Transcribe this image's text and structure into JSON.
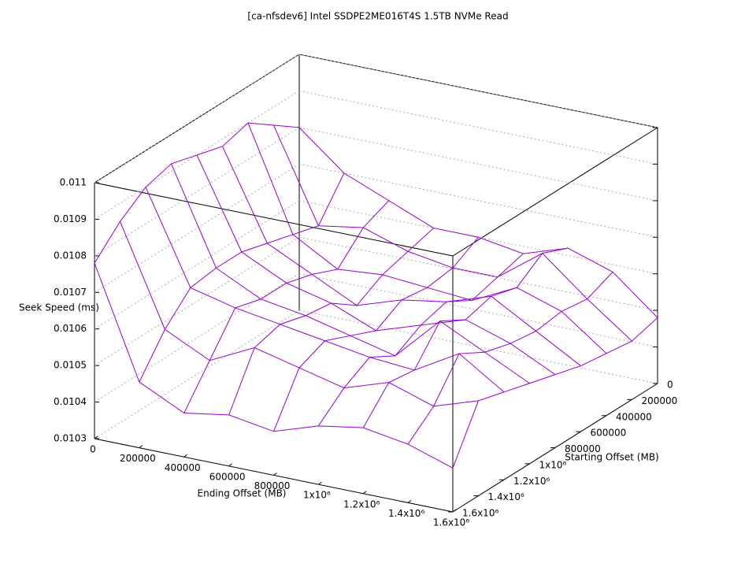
{
  "chart_data": {
    "type": "surface",
    "title": "[ca-nfsdev6] Intel SSDPE2ME016T4S 1.5TB NVMe Read",
    "x_label": "Ending Offset (MB)",
    "y_label": "Starting Offset (MB)",
    "z_label": "Seek Speed (ms)",
    "color": "#9400d3",
    "x": [
      0,
      200000,
      400000,
      600000,
      800000,
      1000000,
      1200000,
      1400000,
      1600000
    ],
    "y": [
      0,
      200000,
      400000,
      600000,
      800000,
      1000000,
      1200000,
      1400000,
      1600000
    ],
    "z": [
      [
        0.0108,
        0.0107,
        0.01065,
        0.0106,
        0.0106,
        0.01058,
        0.01062,
        0.01058,
        0.01048
      ],
      [
        0.01085,
        0.0106,
        0.01062,
        0.01058,
        0.01056,
        0.01056,
        0.01065,
        0.01055,
        0.01046
      ],
      [
        0.0109,
        0.01062,
        0.01055,
        0.01056,
        0.01055,
        0.01054,
        0.0106,
        0.01056,
        0.01047
      ],
      [
        0.01088,
        0.01064,
        0.01058,
        0.01052,
        0.01056,
        0.01058,
        0.01062,
        0.01055,
        0.01048
      ],
      [
        0.0109,
        0.01066,
        0.0106,
        0.01057,
        0.01052,
        0.01056,
        0.0106,
        0.01056,
        0.0105
      ],
      [
        0.01092,
        0.01066,
        0.0106,
        0.01058,
        0.01055,
        0.01052,
        0.01064,
        0.01058,
        0.01052
      ],
      [
        0.0109,
        0.01065,
        0.01062,
        0.0106,
        0.01058,
        0.01056,
        0.01055,
        0.01062,
        0.01054
      ],
      [
        0.01085,
        0.01058,
        0.01052,
        0.01058,
        0.01055,
        0.01052,
        0.01056,
        0.01052,
        0.01056
      ],
      [
        0.01078,
        0.01048,
        0.01042,
        0.01044,
        0.01042,
        0.01046,
        0.01048,
        0.01046,
        0.01042
      ]
    ],
    "xlim": [
      0,
      1600000
    ],
    "ylim": [
      0,
      1600000
    ],
    "zlim": [
      0.0103,
      0.011
    ],
    "xticks": [
      0,
      200000,
      400000,
      600000,
      800000,
      {
        "value": 1000000,
        "label": "1x10⁶"
      },
      {
        "value": 1200000,
        "label": "1.2x10⁶"
      },
      {
        "value": 1400000,
        "label": "1.4x10⁶"
      },
      {
        "value": 1600000,
        "label": "1.6x10⁶"
      }
    ],
    "yticks": [
      0,
      200000,
      400000,
      600000,
      800000,
      {
        "value": 1000000,
        "label": "1x10⁶"
      },
      {
        "value": 1200000,
        "label": "1.2x10⁶"
      },
      {
        "value": 1400000,
        "label": "1.4x10⁶"
      },
      {
        "value": 1600000,
        "label": "1.6x10⁶"
      }
    ],
    "zticks": [
      0.0103,
      0.0104,
      0.0105,
      0.0106,
      0.0107,
      0.0108,
      0.0109,
      0.011
    ],
    "grid": true
  }
}
